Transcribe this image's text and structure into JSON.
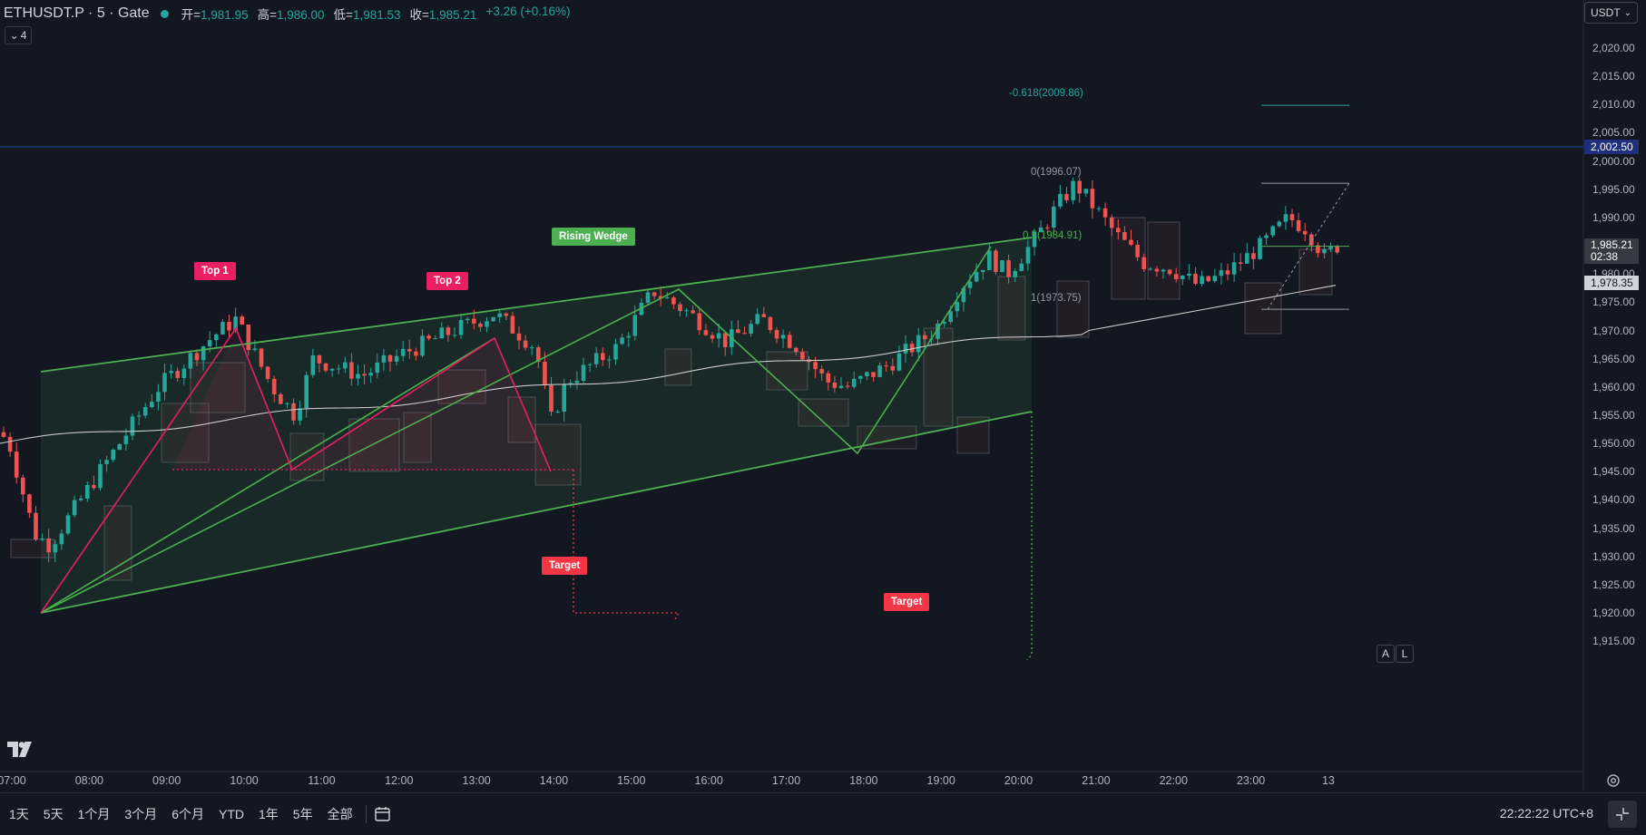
{
  "header": {
    "symbol": "ETHUSDT.P · 5 · Gate",
    "ohlc": [
      {
        "k": "开=",
        "v": "1,981.95"
      },
      {
        "k": "高=",
        "v": "1,986.00"
      },
      {
        "k": "低=",
        "v": "1,981.53"
      },
      {
        "k": "收=",
        "v": "1,985.21"
      }
    ],
    "change": "+3.26 (+0.16%)",
    "indicator_count": "4"
  },
  "currency": {
    "label": "USDT"
  },
  "price_axis": {
    "ticks": [
      "2,020.00",
      "2,015.00",
      "2,010.00",
      "2,005.00",
      "2,000.00",
      "1,995.00",
      "1,990.00",
      "1,985.00",
      "1,980.00",
      "1,975.00",
      "1,970.00",
      "1,965.00",
      "1,960.00",
      "1,955.00",
      "1,950.00",
      "1,945.00",
      "1,940.00",
      "1,935.00",
      "1,930.00",
      "1,925.00",
      "1,920.00",
      "1,915.00"
    ],
    "labels": {
      "crosshair": "2,002.50",
      "last": "1,985.21",
      "countdown": "02:38",
      "ma": "1,978.35"
    },
    "colors": {
      "crosshair": "#1e2f7c",
      "last": "#363a45",
      "ma": "#d1d4dc"
    }
  },
  "time_axis": {
    "ticks": [
      "07:00",
      "08:00",
      "09:00",
      "10:00",
      "11:00",
      "12:00",
      "13:00",
      "14:00",
      "15:00",
      "16:00",
      "17:00",
      "18:00",
      "19:00",
      "20:00",
      "21:00",
      "22:00",
      "23:00",
      "13"
    ]
  },
  "annotations": {
    "top1": "Top 1",
    "top2": "Top 2",
    "wedge": "Rising Wedge",
    "target1": "Target",
    "target2": "Target",
    "fib_neg618": "-0.618(2009.86)",
    "fib_0": "0(1996.07)",
    "fib_05": "0.5(1984.91)",
    "fib_1": "1(1973.75)"
  },
  "colors": {
    "up": "#26a69a",
    "down": "#ef5350",
    "wedge": "#4caf50",
    "pink": "#e91e63",
    "target": "#f23645",
    "bg": "#131722"
  },
  "bottom_bar": {
    "ranges": [
      "1天",
      "5天",
      "1个月",
      "3个月",
      "6个月",
      "YTD",
      "1年",
      "5年",
      "全部"
    ],
    "clock": "22:22:22 UTC+8"
  },
  "scale_buttons": {
    "auto": "A",
    "log": "L"
  },
  "chart_data": {
    "type": "candlestick",
    "symbol": "ETHUSDT.P",
    "interval": "5",
    "ylim": [
      1915,
      2022
    ],
    "ohlc_last": {
      "open": 1981.95,
      "high": 1986.0,
      "low": 1981.53,
      "close": 1985.21
    },
    "x": [
      "07:00",
      "08:00",
      "09:00",
      "10:00",
      "11:00",
      "12:00",
      "13:00",
      "14:00",
      "15:00",
      "16:00",
      "17:00",
      "18:00",
      "19:00",
      "20:00",
      "21:00",
      "22:00"
    ],
    "series": [
      {
        "values": [
          1950,
          1946,
          1962,
          1972,
          1963,
          1970,
          1962,
          1977,
          1969,
          1963,
          1961,
          1980,
          1991,
          1990,
          1984,
          1983
        ]
      },
      {
        "values": [
          1951,
          1950,
          1951,
          1953,
          1954,
          1955,
          1958,
          1960,
          1962,
          1964,
          1966,
          1968,
          1971,
          1974,
          1976,
          1978
        ]
      }
    ],
    "annotations": [
      "Top 1",
      "Top 2",
      "Rising Wedge",
      "Target",
      "Target"
    ]
  }
}
